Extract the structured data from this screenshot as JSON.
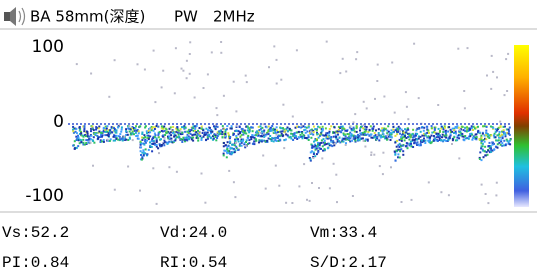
{
  "header": {
    "probe": "BA 58mm(深度)",
    "mode": "PW",
    "frequency": "2MHz"
  },
  "axis_labels": [
    "100",
    "0",
    "-100"
  ],
  "measurements": [
    [
      "Vs:52.2",
      "Vd:24.0",
      "Vm:33.4"
    ],
    [
      "PI:0.84",
      "RI:0.54",
      "S/D:2.17"
    ]
  ]
}
